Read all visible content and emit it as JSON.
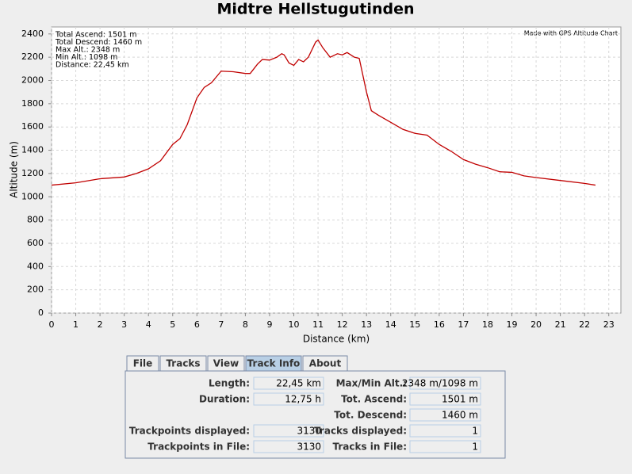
{
  "chart_data": {
    "type": "line",
    "title": "Midtre Hellstugutinden",
    "x_label": "Distance (km)",
    "y_label": "Altitude (m)",
    "annotations": [
      "Total Ascend: 1501 m",
      "Total Descend: 1460 m",
      "Max Alt.: 2348 m",
      "Min Alt.: 1098 m",
      "Distance: 22,45 km"
    ],
    "watermark": "Made with GPS Altitude Chart",
    "color": "#c00000",
    "grid": true,
    "xlim": [
      0,
      23.5
    ],
    "ylim": [
      0,
      2460
    ],
    "xticks": [
      0,
      1,
      2,
      3,
      4,
      5,
      6,
      7,
      8,
      9,
      10,
      11,
      12,
      13,
      14,
      15,
      16,
      17,
      18,
      19,
      20,
      21,
      22,
      23
    ],
    "yticks": [
      0,
      200,
      400,
      600,
      800,
      1000,
      1200,
      1400,
      1600,
      1800,
      2000,
      2200,
      2400
    ],
    "x": [
      0,
      1,
      2,
      3,
      3.5,
      4,
      4.5,
      5,
      5.3,
      5.6,
      6,
      6.3,
      6.6,
      7,
      7.5,
      8,
      8.2,
      8.5,
      8.7,
      9,
      9.3,
      9.5,
      9.6,
      9.8,
      10,
      10.2,
      10.4,
      10.6,
      10.9,
      11,
      11.2,
      11.5,
      11.8,
      12,
      12.2,
      12.5,
      12.7,
      13,
      13.2,
      13.5,
      14,
      14.5,
      15,
      15.5,
      16,
      16.5,
      17,
      17.5,
      18,
      18.5,
      19,
      19.5,
      20,
      21,
      22,
      22.45
    ],
    "values": [
      1100,
      1120,
      1155,
      1170,
      1200,
      1240,
      1310,
      1450,
      1500,
      1620,
      1850,
      1940,
      1980,
      2080,
      2075,
      2060,
      2060,
      2140,
      2180,
      2175,
      2200,
      2230,
      2220,
      2150,
      2130,
      2180,
      2160,
      2200,
      2330,
      2348,
      2280,
      2200,
      2230,
      2220,
      2240,
      2200,
      2190,
      1900,
      1740,
      1700,
      1640,
      1580,
      1545,
      1530,
      1450,
      1390,
      1320,
      1280,
      1250,
      1215,
      1210,
      1180,
      1165,
      1140,
      1115,
      1100
    ]
  },
  "tabs": [
    "File",
    "Tracks",
    "View",
    "Track Info",
    "About"
  ],
  "active_tab": 3,
  "track_info": {
    "left": [
      {
        "label": "Length:",
        "value": "22,45 km"
      },
      {
        "label": "Duration:",
        "value": "12,75 h"
      },
      {
        "label": "Trackpoints displayed:",
        "value": "3130"
      },
      {
        "label": "Trackpoints in File:",
        "value": "3130"
      }
    ],
    "right": [
      {
        "label": "Max/Min Alt.:",
        "value": "2348 m/1098 m"
      },
      {
        "label": "Tot. Ascend:",
        "value": "1501 m"
      },
      {
        "label": "Tot. Descend:",
        "value": "1460 m"
      },
      {
        "label": "Tracks displayed:",
        "value": "1"
      },
      {
        "label": "Tracks in File:",
        "value": "1"
      }
    ]
  }
}
